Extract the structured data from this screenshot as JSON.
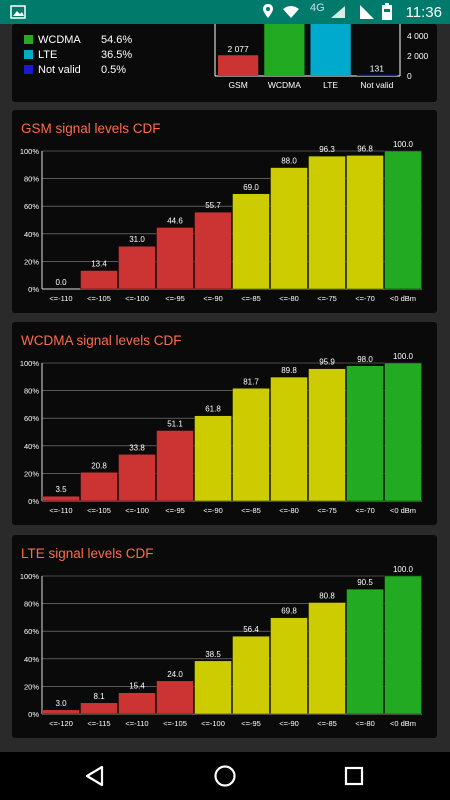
{
  "status": {
    "time": "11:36",
    "network_type": "4G",
    "icons": [
      "image-icon",
      "location-icon",
      "wifi-icon",
      "signal-icon",
      "battery-icon"
    ]
  },
  "summary": {
    "legend": [
      {
        "name": "WCDMA",
        "value": "54.6%",
        "color": "#22aa22"
      },
      {
        "name": "LTE",
        "value": "36.5%",
        "color": "#00aacc"
      },
      {
        "name": "Not valid",
        "value": "0.5%",
        "color": "#1a1acc"
      }
    ],
    "bar_chart": {
      "type": "bar",
      "categories": [
        "GSM",
        "WCDMA",
        "LTE",
        "Not valid"
      ],
      "labels": [
        "2 077",
        "",
        "",
        "131"
      ],
      "values": [
        2077,
        7000,
        6000,
        131
      ],
      "colors": [
        "#cc3333",
        "#22aa22",
        "#00aacc",
        "#1a1acc"
      ],
      "yticks": [
        "0",
        "2 000",
        "4 000"
      ],
      "ylim": [
        0,
        6000
      ]
    }
  },
  "cards": [
    {
      "title": "GSM signal levels CDF",
      "chart_data": {
        "type": "bar",
        "categories": [
          "<=-110",
          "<=-105",
          "<=-100",
          "<=-95",
          "<=-90",
          "<=-85",
          "<=-80",
          "<=-75",
          "<=-70",
          "<0 dBm"
        ],
        "values": [
          0.0,
          13.4,
          31.0,
          44.6,
          55.7,
          69.0,
          88.0,
          96.3,
          96.8,
          100.0
        ],
        "labels": [
          "0.0",
          "13.4",
          "31.0",
          "44.6",
          "55.7",
          "69.0",
          "88.0",
          "96.3",
          "96.8",
          "100.0"
        ],
        "colors": [
          "#cc3333",
          "#cc3333",
          "#cc3333",
          "#cc3333",
          "#cc3333",
          "#cccc00",
          "#cccc00",
          "#cccc00",
          "#cccc00",
          "#22aa22"
        ],
        "yticks": [
          "0%",
          "20%",
          "40%",
          "60%",
          "80%",
          "100%"
        ],
        "ylim": [
          0,
          100
        ]
      }
    },
    {
      "title": "WCDMA signal levels CDF",
      "chart_data": {
        "type": "bar",
        "categories": [
          "<=-110",
          "<=-105",
          "<=-100",
          "<=-95",
          "<=-90",
          "<=-85",
          "<=-80",
          "<=-75",
          "<=-70",
          "<0 dBm"
        ],
        "values": [
          3.5,
          20.8,
          33.8,
          51.1,
          61.8,
          81.7,
          89.8,
          95.9,
          98.0,
          100.0
        ],
        "labels": [
          "3.5",
          "20.8",
          "33.8",
          "51.1",
          "61.8",
          "81.7",
          "89.8",
          "95.9",
          "98.0",
          "100.0"
        ],
        "colors": [
          "#cc3333",
          "#cc3333",
          "#cc3333",
          "#cc3333",
          "#cccc00",
          "#cccc00",
          "#cccc00",
          "#cccc00",
          "#22aa22",
          "#22aa22"
        ],
        "yticks": [
          "0%",
          "20%",
          "40%",
          "60%",
          "80%",
          "100%"
        ],
        "ylim": [
          0,
          100
        ]
      }
    },
    {
      "title": "LTE signal levels CDF",
      "chart_data": {
        "type": "bar",
        "categories": [
          "<=-120",
          "<=-115",
          "<=-110",
          "<=-105",
          "<=-100",
          "<=-95",
          "<=-90",
          "<=-85",
          "<=-80",
          "<0 dBm"
        ],
        "values": [
          3.0,
          8.1,
          15.4,
          24.0,
          38.5,
          56.4,
          69.8,
          80.8,
          90.5,
          100.0
        ],
        "labels": [
          "3.0",
          "8.1",
          "15.4",
          "24.0",
          "38.5",
          "56.4",
          "69.8",
          "80.8",
          "90.5",
          "100.0"
        ],
        "colors": [
          "#cc3333",
          "#cc3333",
          "#cc3333",
          "#cc3333",
          "#cccc00",
          "#cccc00",
          "#cccc00",
          "#cccc00",
          "#22aa22",
          "#22aa22"
        ],
        "yticks": [
          "0%",
          "20%",
          "40%",
          "60%",
          "80%",
          "100%"
        ],
        "ylim": [
          0,
          100
        ]
      }
    }
  ],
  "nav": {
    "icons": [
      "back-icon",
      "home-icon",
      "recents-icon"
    ]
  }
}
